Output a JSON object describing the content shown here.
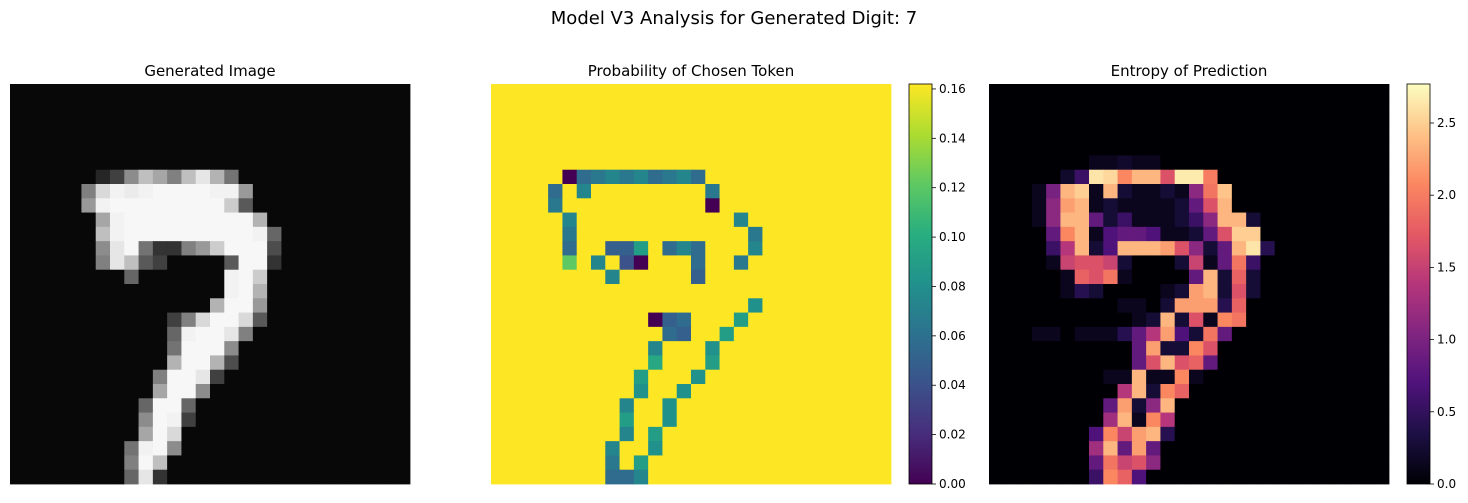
{
  "suptitle": "Model V3 Analysis for Generated Digit: 7",
  "chart_data": [
    {
      "type": "heatmap",
      "title": "Generated Image",
      "colormap": "gray",
      "rows": 28,
      "cols": 28,
      "colorbar": false
    },
    {
      "type": "heatmap",
      "title": "Probability of Chosen Token",
      "colormap": "viridis",
      "rows": 28,
      "cols": 28,
      "colorbar": true,
      "vmin": 0,
      "vmax": 0.162,
      "colorbar_ticks": [
        "0.00",
        "0.02",
        "0.04",
        "0.06",
        "0.08",
        "0.10",
        "0.12",
        "0.14",
        "0.16"
      ]
    },
    {
      "type": "heatmap",
      "title": "Entropy of Prediction",
      "colormap": "magma",
      "rows": 28,
      "cols": 28,
      "colorbar": true,
      "vmin": 0,
      "vmax": 2.77,
      "colorbar_ticks": [
        "0.0",
        "0.5",
        "1.0",
        "1.5",
        "2.0",
        "2.5"
      ]
    }
  ]
}
